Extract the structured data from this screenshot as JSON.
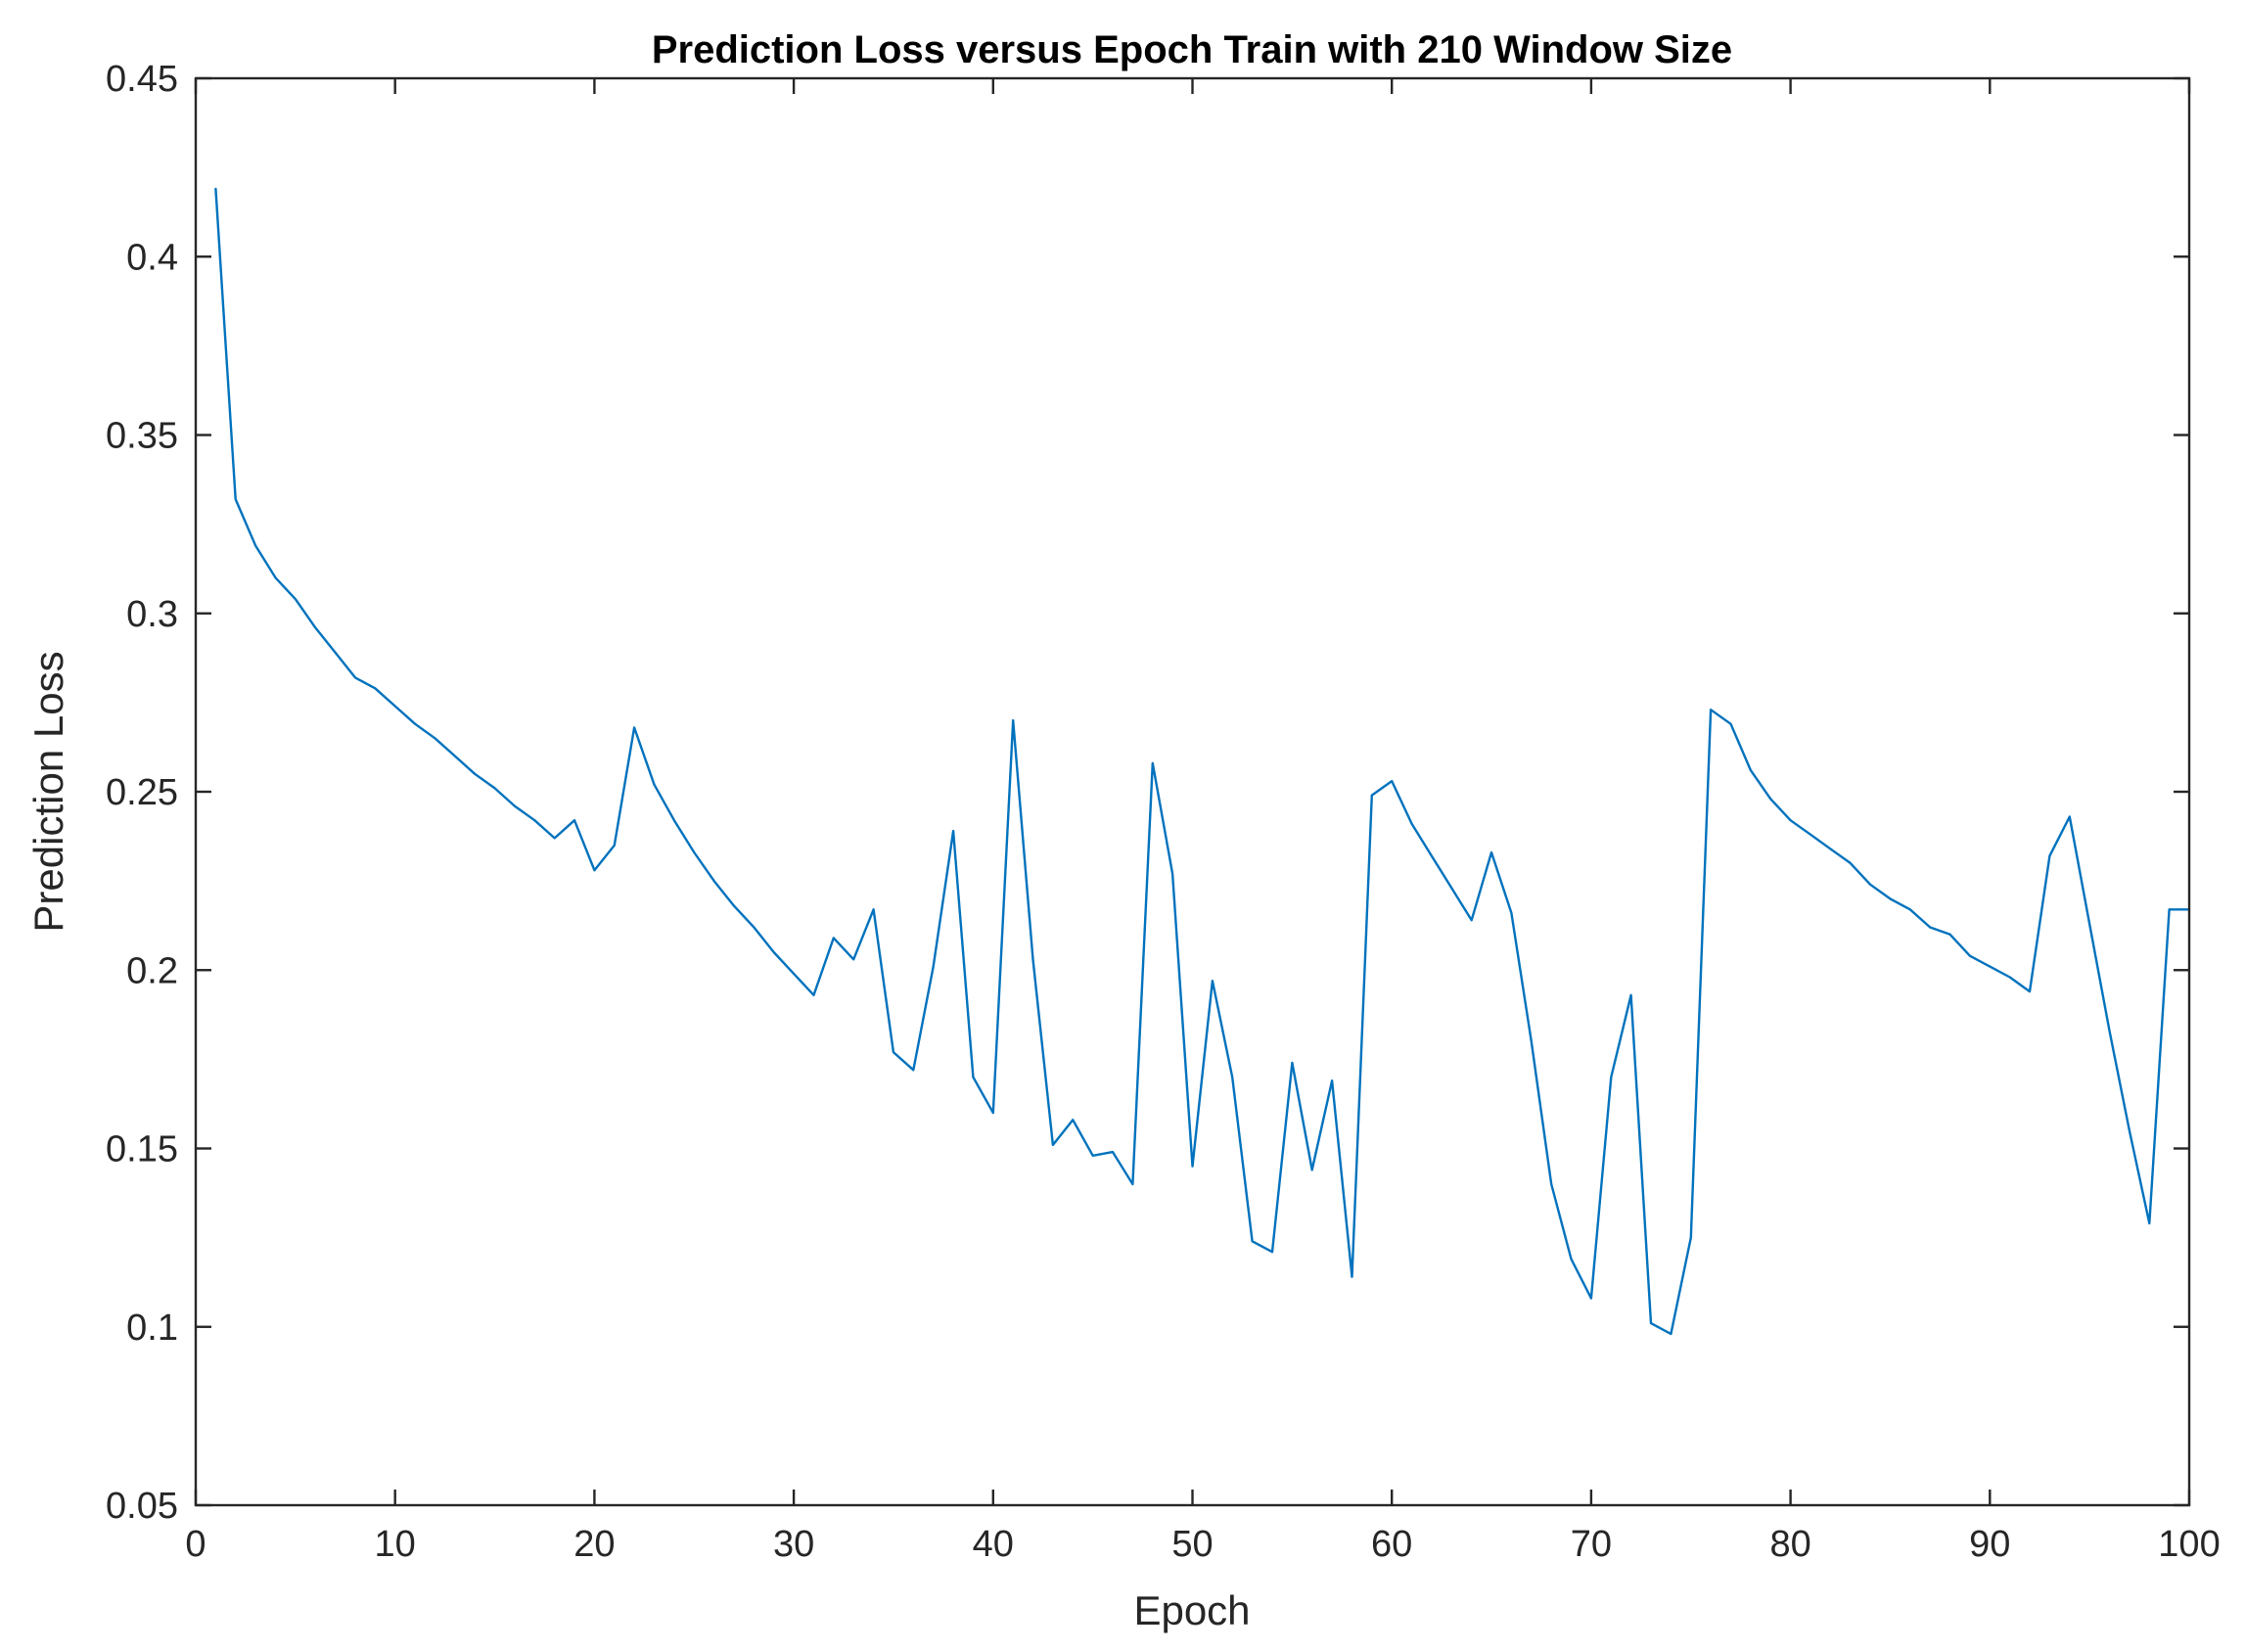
{
  "chart_data": {
    "type": "line",
    "title": "Prediction Loss versus Epoch Train with 210 Window Size",
    "xlabel": "Epoch",
    "ylabel": "Prediction Loss",
    "xlim": [
      0,
      100
    ],
    "ylim": [
      0.05,
      0.45
    ],
    "xticks": [
      0,
      10,
      20,
      30,
      40,
      50,
      60,
      70,
      80,
      90,
      100
    ],
    "xtick_labels": [
      "0",
      "10",
      "20",
      "30",
      "40",
      "50",
      "60",
      "70",
      "80",
      "90",
      "100"
    ],
    "yticks": [
      0.05,
      0.1,
      0.15,
      0.2,
      0.25,
      0.3,
      0.35,
      0.4,
      0.45
    ],
    "ytick_labels": [
      "0.05",
      "0.1",
      "0.15",
      "0.2",
      "0.25",
      "0.3",
      "0.35",
      "0.4",
      "0.45"
    ],
    "grid": false,
    "line_color": "#0072BD",
    "series": [
      {
        "x": [
          1,
          2,
          3,
          4,
          5,
          6,
          7,
          8,
          9,
          10,
          11,
          12,
          13,
          14,
          15,
          16,
          17,
          18,
          19,
          20,
          21,
          22,
          23,
          24,
          25,
          26,
          27,
          28,
          29,
          30,
          31,
          32,
          33,
          34,
          35,
          36,
          37,
          38,
          39,
          40,
          41,
          42,
          43,
          44,
          45,
          46,
          47,
          48,
          49,
          50,
          51,
          52,
          53,
          54,
          55,
          56,
          57,
          58,
          59,
          60,
          61,
          62,
          63,
          64,
          65,
          66,
          67,
          68,
          69,
          70,
          71,
          72,
          73,
          74,
          75,
          76,
          77,
          78,
          79,
          80,
          81,
          82,
          83,
          84,
          85,
          86,
          87,
          88,
          89,
          90,
          91,
          92,
          93,
          94,
          95,
          96,
          97,
          98,
          99,
          100
        ],
        "values": [
          0.419,
          0.332,
          0.319,
          0.31,
          0.304,
          0.296,
          0.289,
          0.282,
          0.279,
          0.274,
          0.269,
          0.265,
          0.26,
          0.255,
          0.251,
          0.246,
          0.242,
          0.237,
          0.242,
          0.228,
          0.235,
          0.268,
          0.252,
          0.242,
          0.233,
          0.225,
          0.218,
          0.212,
          0.205,
          0.199,
          0.193,
          0.209,
          0.203,
          0.217,
          0.177,
          0.172,
          0.201,
          0.239,
          0.17,
          0.16,
          0.27,
          0.203,
          0.151,
          0.158,
          0.148,
          0.149,
          0.14,
          0.258,
          0.227,
          0.145,
          0.197,
          0.17,
          0.124,
          0.121,
          0.174,
          0.144,
          0.169,
          0.114,
          0.249,
          0.253,
          0.241,
          0.232,
          0.223,
          0.214,
          0.233,
          0.216,
          0.18,
          0.14,
          0.119,
          0.108,
          0.17,
          0.193,
          0.101,
          0.098,
          0.125,
          0.273,
          0.269,
          0.256,
          0.248,
          0.242,
          0.238,
          0.234,
          0.23,
          0.224,
          0.22,
          0.217,
          0.212,
          0.21,
          0.204,
          0.201,
          0.198,
          0.194,
          0.232,
          0.243,
          0.213,
          0.183,
          0.155,
          0.129,
          0.217,
          0.217
        ]
      }
    ]
  }
}
